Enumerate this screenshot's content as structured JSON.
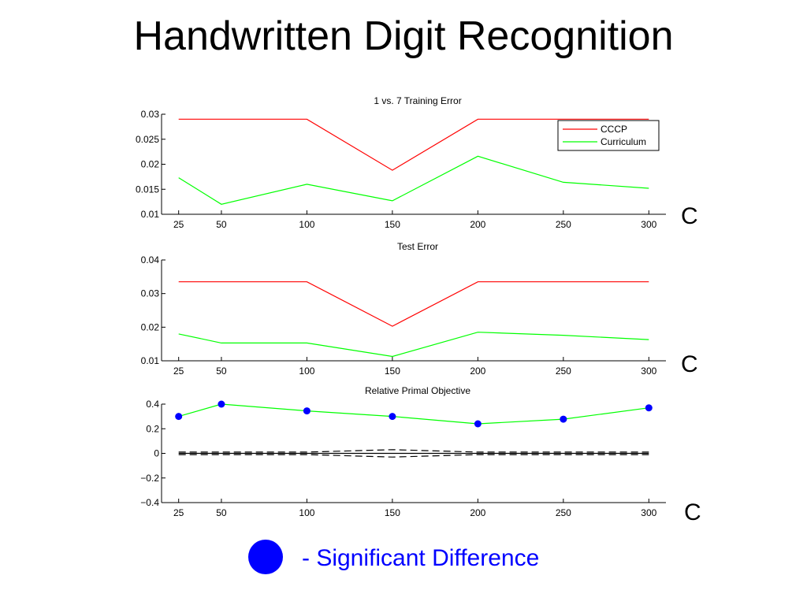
{
  "slide": {
    "title": "Handwritten Digit Recognition",
    "c_labels": [
      "C",
      "C",
      "C"
    ],
    "legend_text": "- Significant Difference",
    "marker_color": "#0000ff"
  },
  "chart_data": [
    {
      "type": "line",
      "title": "1 vs. 7 Training Error",
      "x": [
        25,
        50,
        100,
        150,
        200,
        250,
        300
      ],
      "xticks": [
        "25",
        "50",
        "100",
        "150",
        "200",
        "250",
        "300"
      ],
      "ylim": [
        0.01,
        0.03
      ],
      "yticks": [
        "0.01",
        "0.015",
        "0.02",
        "0.025",
        "0.03"
      ],
      "ytick_values": [
        0.01,
        0.015,
        0.02,
        0.025,
        0.03
      ],
      "legend": "top-right",
      "series": [
        {
          "name": "CCCP",
          "color": "#ff0000",
          "values": [
            0.029,
            0.029,
            0.029,
            0.0188,
            0.029,
            0.029,
            0.029
          ]
        },
        {
          "name": "Curriculum",
          "color": "#00ff00",
          "values": [
            0.0173,
            0.012,
            0.016,
            0.0127,
            0.0216,
            0.0164,
            0.0152
          ]
        }
      ]
    },
    {
      "type": "line",
      "title": "Test Error",
      "x": [
        25,
        50,
        100,
        150,
        200,
        250,
        300
      ],
      "xticks": [
        "25",
        "50",
        "100",
        "150",
        "200",
        "250",
        "300"
      ],
      "ylim": [
        0.01,
        0.04
      ],
      "yticks": [
        "0.01",
        "0.02",
        "0.03",
        "0.04"
      ],
      "ytick_values": [
        0.01,
        0.02,
        0.03,
        0.04
      ],
      "series": [
        {
          "color": "#ff0000",
          "values": [
            0.0335,
            0.0335,
            0.0335,
            0.0203,
            0.0335,
            0.0335,
            0.0335
          ]
        },
        {
          "color": "#00ff00",
          "values": [
            0.018,
            0.0153,
            0.0153,
            0.0113,
            0.0185,
            0.0176,
            0.0163
          ]
        }
      ]
    },
    {
      "type": "line",
      "title": "Relative Primal Objective",
      "x": [
        25,
        50,
        100,
        150,
        200,
        250,
        300
      ],
      "xticks": [
        "25",
        "50",
        "100",
        "150",
        "200",
        "250",
        "300"
      ],
      "ylim": [
        -0.4,
        0.4
      ],
      "yticks": [
        "−0.4",
        "−0.2",
        "0",
        "0.2",
        "0.4"
      ],
      "ytick_values": [
        -0.4,
        -0.2,
        0,
        0.2,
        0.4
      ],
      "series": [
        {
          "color": "#00ff00",
          "marker_color": "#0000ff",
          "values": [
            0.3,
            0.4,
            0.345,
            0.3,
            0.24,
            0.278,
            0.37
          ],
          "significant": [
            true,
            true,
            true,
            true,
            true,
            true,
            true
          ]
        },
        {
          "color": "#000000",
          "style": "solid",
          "values": [
            0,
            0,
            0,
            0,
            0,
            0,
            0
          ]
        },
        {
          "color": "#000000",
          "style": "dashed",
          "values": [
            0.01,
            0.01,
            0.01,
            0.03,
            0.01,
            0.01,
            0.01
          ]
        },
        {
          "color": "#000000",
          "style": "dashed",
          "values": [
            -0.01,
            -0.01,
            -0.01,
            -0.03,
            -0.01,
            -0.01,
            -0.01
          ]
        }
      ]
    }
  ]
}
